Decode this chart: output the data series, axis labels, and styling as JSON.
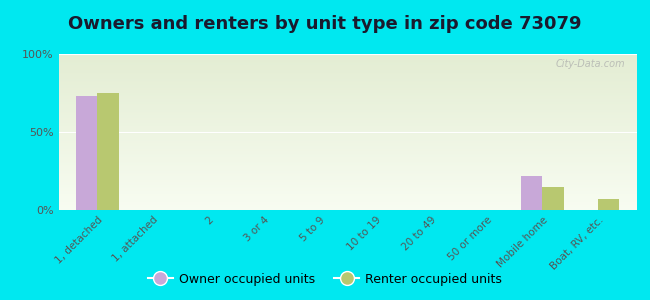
{
  "title": "Owners and renters by unit type in zip code 73079",
  "categories": [
    "1, detached",
    "1, attached",
    "2",
    "3 or 4",
    "5 to 9",
    "10 to 19",
    "20 to 49",
    "50 or more",
    "Mobile home",
    "Boat, RV, etc."
  ],
  "owner_values": [
    73,
    0,
    0,
    0,
    0,
    0,
    0,
    0,
    22,
    0
  ],
  "renter_values": [
    75,
    0,
    0,
    0,
    0,
    0,
    0,
    0,
    15,
    7
  ],
  "owner_color": "#c8a8d8",
  "renter_color": "#b8c870",
  "outer_bg": "#00e8f0",
  "ylabel_ticks": [
    0,
    50,
    100
  ],
  "ylabel_labels": [
    "0%",
    "50%",
    "100%"
  ],
  "legend_owner": "Owner occupied units",
  "legend_renter": "Renter occupied units",
  "title_fontsize": 13,
  "bar_width": 0.38,
  "watermark": "City-Data.com"
}
